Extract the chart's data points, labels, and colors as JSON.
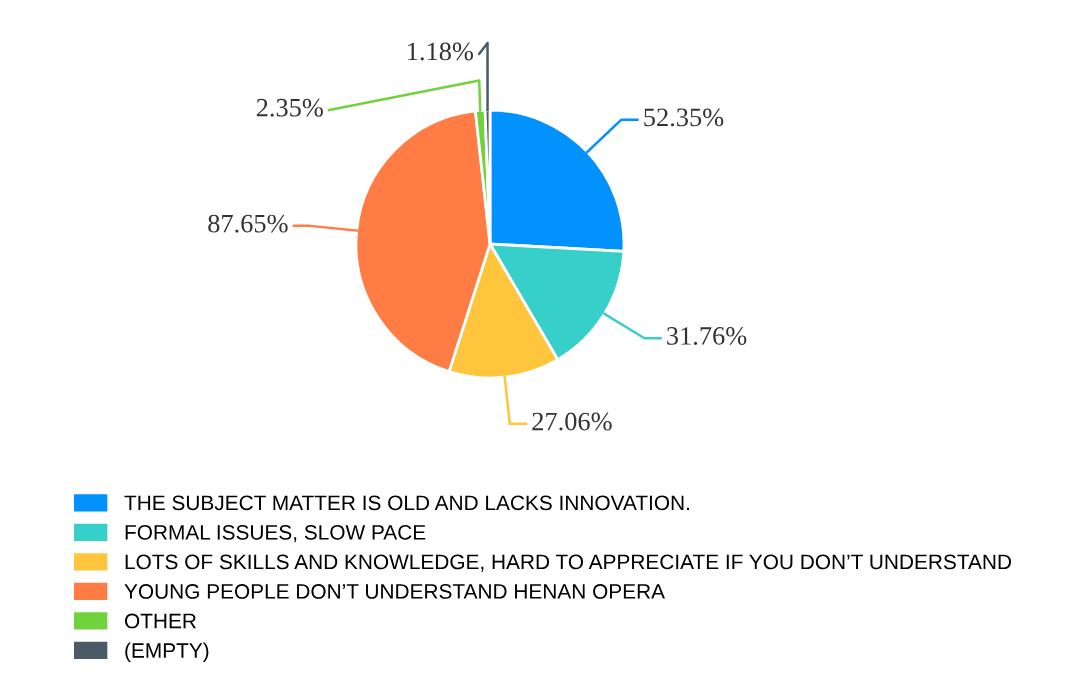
{
  "chart_data": {
    "type": "pie",
    "categories": [
      "THE SUBJECT MATTER IS OLD AND LACKS INNOVATION.",
      "FORMAL ISSUES, SLOW PACE",
      "LOTS OF SKILLS AND KNOWLEDGE, HARD TO APPRECIATE IF YOU DON’T UNDERSTAND",
      "YOUNG PEOPLE DON’T UNDERSTAND HENAN OPERA",
      "OTHER",
      "(EMPTY)"
    ],
    "values": [
      52.35,
      31.76,
      27.06,
      87.65,
      2.35,
      1.18
    ],
    "value_labels": [
      "52.35%",
      "31.76%",
      "27.06%",
      "87.65%",
      "2.35%",
      "1.18%"
    ],
    "colors": [
      "#0292fe",
      "#37cfca",
      "#ffc53d",
      "#ff7c44",
      "#70d33d",
      "#4a5b67"
    ],
    "legend": "bottom"
  }
}
